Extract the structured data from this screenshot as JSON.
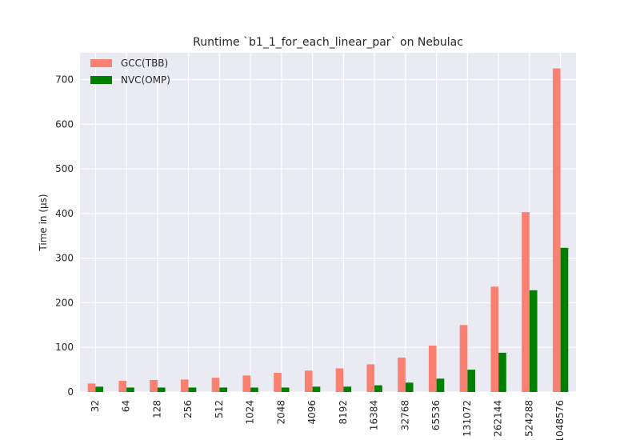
{
  "chart_data": {
    "type": "bar",
    "title": "Runtime `b1_1_for_each_linear_par` on Nebulac",
    "xlabel": "",
    "ylabel": "Time in (µs)",
    "ylim": [
      0,
      760
    ],
    "yticks": [
      0,
      100,
      200,
      300,
      400,
      500,
      600,
      700
    ],
    "grid": true,
    "legend_placement": "top-left",
    "categories": [
      "32",
      "64",
      "128",
      "256",
      "512",
      "1024",
      "2048",
      "4096",
      "8192",
      "16384",
      "32768",
      "65536",
      "131072",
      "262144",
      "524288",
      "1048576"
    ],
    "series": [
      {
        "name": "GCC(TBB)",
        "color": "#fa8072",
        "values": [
          19,
          25,
          27,
          28,
          32,
          37,
          43,
          48,
          53,
          62,
          77,
          104,
          150,
          236,
          403,
          725
        ]
      },
      {
        "name": "NVC(OMP)",
        "color": "#008000",
        "values": [
          12,
          10,
          10,
          10,
          10,
          10,
          10,
          12,
          12,
          15,
          21,
          30,
          50,
          88,
          228,
          323
        ]
      }
    ],
    "background_color": "#eaeaf2",
    "grid_color": "#ffffff"
  }
}
